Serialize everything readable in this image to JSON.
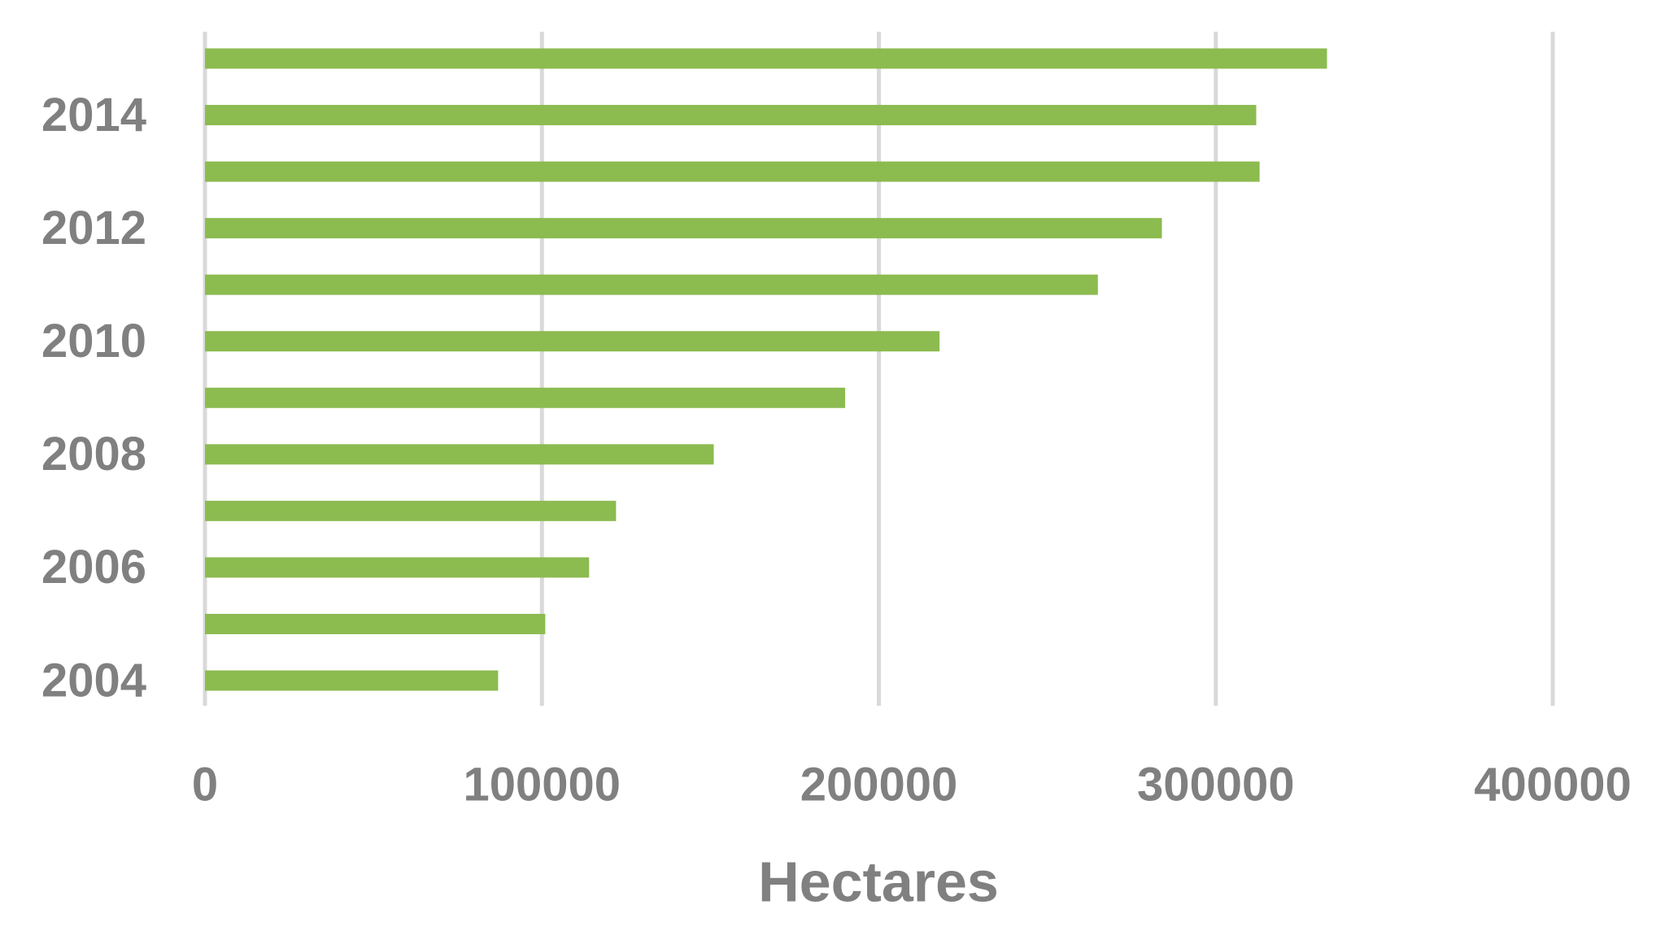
{
  "chart_data": {
    "type": "barh",
    "x_label": "Hectares",
    "categories": [
      "2004",
      null,
      "2006",
      null,
      "2008",
      null,
      "2010",
      null,
      "2012",
      null,
      "2014",
      null
    ],
    "values": [
      87000,
      101000,
      114000,
      122000,
      151000,
      190000,
      218000,
      265000,
      284000,
      313000,
      312000,
      333000
    ],
    "color": "#8cbb50",
    "xlim": [
      0,
      400000
    ],
    "xticks": [
      0,
      100000,
      200000,
      300000,
      400000
    ],
    "grid": true
  }
}
